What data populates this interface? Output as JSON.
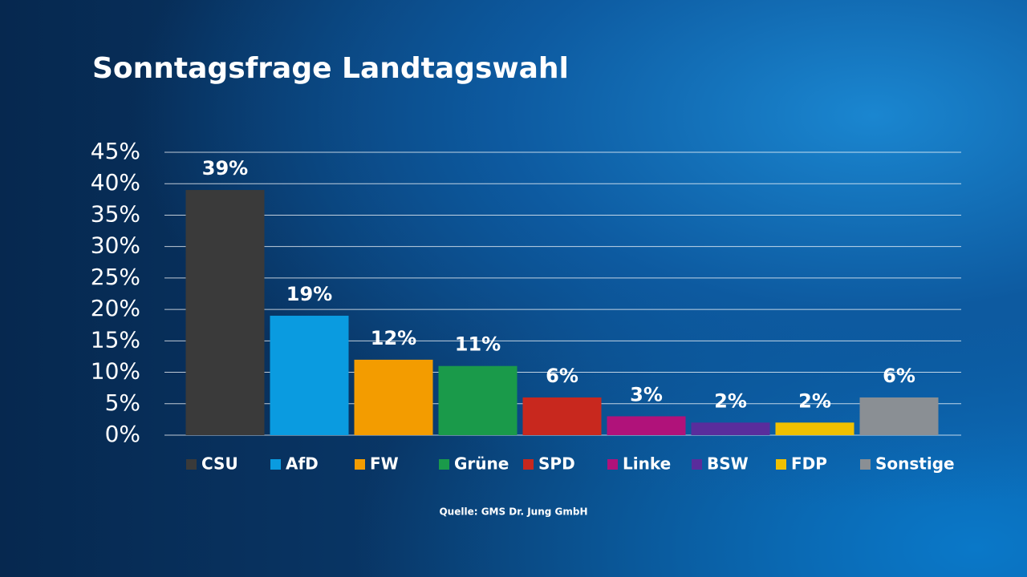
{
  "chart_data": {
    "type": "bar",
    "title": "Sonntagsfrage Landtagswahl",
    "source": "Quelle: GMS Dr. Jung GmbH",
    "categories": [
      "CSU",
      "AfD",
      "FW",
      "Grüne",
      "SPD",
      "Linke",
      "BSW",
      "FDP",
      "Sonstige"
    ],
    "values": [
      39,
      19,
      12,
      11,
      6,
      3,
      2,
      2,
      6
    ],
    "value_labels": [
      "39%",
      "19%",
      "12%",
      "11%",
      "6%",
      "3%",
      "2%",
      "2%",
      "6%"
    ],
    "colors": [
      "#3a3a3a",
      "#0a9be0",
      "#f39c00",
      "#1a9a4a",
      "#c8281e",
      "#b0127a",
      "#5a2d9c",
      "#f0c000",
      "#8a8f94"
    ],
    "ylim": [
      0,
      45
    ],
    "yticks": [
      {
        "value": 0,
        "label": "0%"
      },
      {
        "value": 5,
        "label": "5%"
      },
      {
        "value": 10,
        "label": "10%"
      },
      {
        "value": 15,
        "label": "15%"
      },
      {
        "value": 20,
        "label": "20%"
      },
      {
        "value": 25,
        "label": "25%"
      },
      {
        "value": 30,
        "label": "30%"
      },
      {
        "value": 35,
        "label": "35%"
      },
      {
        "value": 40,
        "label": "40%"
      },
      {
        "value": 45,
        "label": "45%"
      }
    ],
    "grid": true
  }
}
